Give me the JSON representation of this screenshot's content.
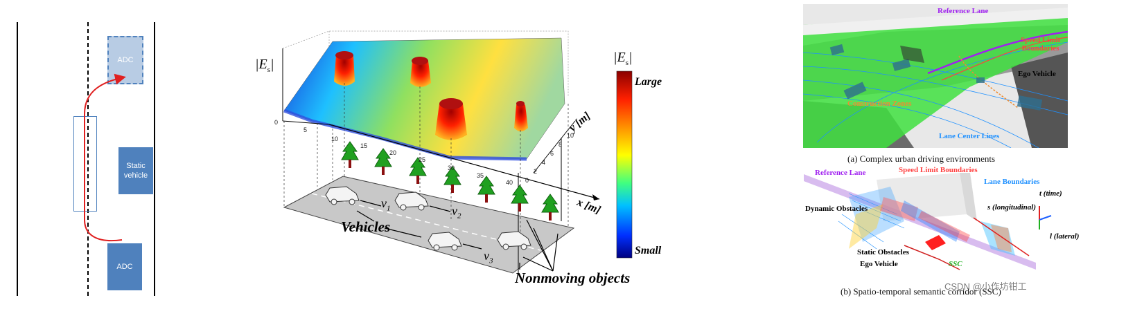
{
  "left": {
    "adc_top_label": "ADC",
    "static_vehicle_label": "Static\nvehicle",
    "adc_bottom_label": "ADC"
  },
  "middle": {
    "es_label": "|E",
    "es_sub": "s",
    "es_close": "|",
    "colorbar_title": "|E",
    "colorbar_sub": "s",
    "colorbar_close": "|",
    "colorbar_large": "Large",
    "colorbar_small": "Small",
    "x_axis_label": "x [m]",
    "y_axis_label": "y [m]",
    "x_ticks": [
      "0",
      "5",
      "10",
      "15",
      "20",
      "25",
      "30",
      "35",
      "40"
    ],
    "y_ticks": [
      "0",
      "2",
      "4",
      "6",
      "8",
      "10"
    ],
    "vehicles_label": "Vehicles",
    "v1": "v",
    "v1_sub": "1",
    "v2": "v",
    "v2_sub": "2",
    "v3": "v",
    "v3_sub": "3",
    "nonmoving_label": "Nonmoving objects"
  },
  "right": {
    "top": {
      "reference_lane": "Reference Lane",
      "speed_limit": "Speed Limit\nBoundaries",
      "ego_vehicle": "Ego Vehicle",
      "construction_zones": "Construction Zones",
      "lane_center_lines": "Lane Center Lines",
      "caption": "(a) Complex urban driving environments"
    },
    "bottom": {
      "reference_lane": "Reference Lane",
      "speed_limit": "Speed Limit Boundaries",
      "lane_boundaries": "Lane Boundaries",
      "t_axis": "t (time)",
      "s_axis": "s (longitudinal)",
      "l_axis": "l (lateral)",
      "dynamic_obstacles": "Dynamic Obstacles",
      "static_obstacles": "Static Obstacles",
      "ego_vehicle": "Ego Vehicle",
      "ssc": "SSC",
      "caption": "(b) Spatio-temporal semantic corridor (SSC)"
    },
    "watermark": "CSDN @小作坊钳工"
  },
  "colors": {
    "adc_blue": "#4f81bd",
    "adc_light": "#b8cce4",
    "trajectory_red": "#e02020",
    "reference_purple": "#a020f0",
    "speed_red": "#ff4040",
    "construction_orange": "#f08c30",
    "lane_blue": "#1e90ff",
    "ssc_green": "#20b020"
  }
}
